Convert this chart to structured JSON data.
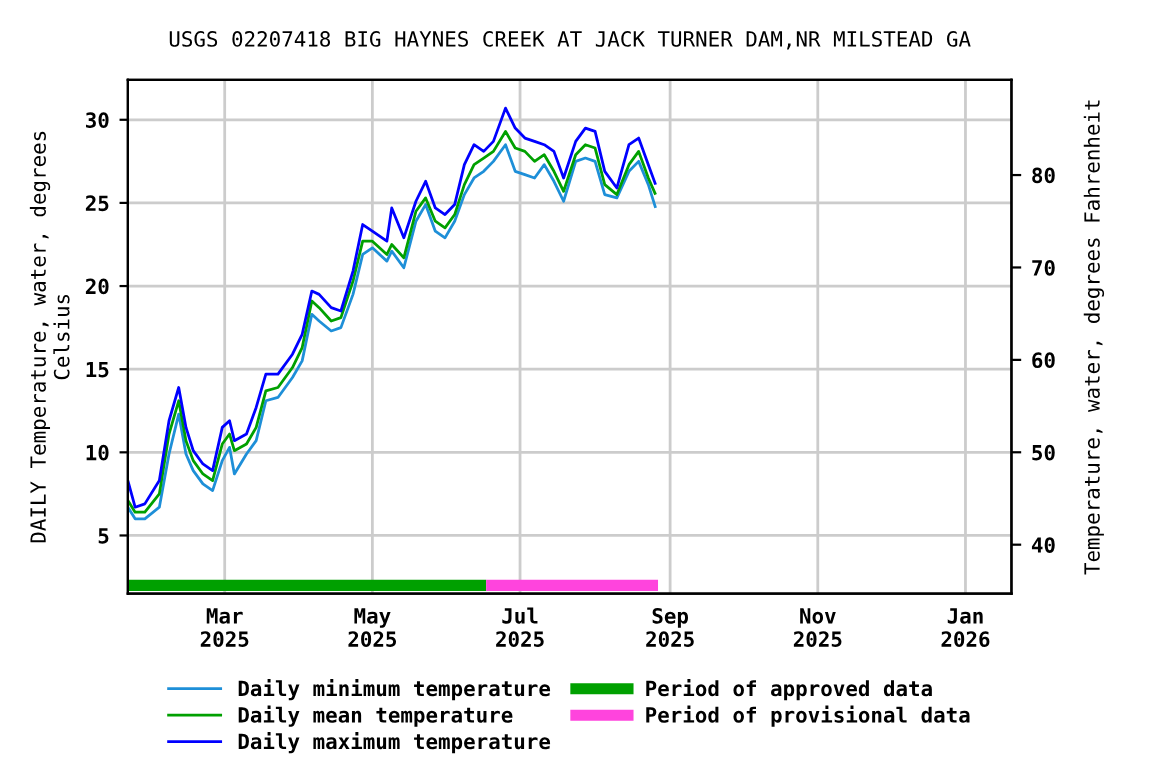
{
  "chart_data": {
    "type": "line",
    "title": "USGS 02207418 BIG HAYNES CREEK AT JACK TURNER DAM,NR MILSTEAD GA",
    "ylabel": "DAILY Temperature, water, degrees\nCelsius",
    "y2label": "Temperature, water, degrees Fahrenheit",
    "x": [
      "2025-01-20",
      "2025-01-23",
      "2025-01-27",
      "2025-02-02",
      "2025-02-06",
      "2025-02-10",
      "2025-02-13",
      "2025-02-16",
      "2025-02-20",
      "2025-02-24",
      "2025-02-28",
      "2025-03-03",
      "2025-03-05",
      "2025-03-10",
      "2025-03-14",
      "2025-03-18",
      "2025-03-23",
      "2025-03-29",
      "2025-04-02",
      "2025-04-06",
      "2025-04-09",
      "2025-04-14",
      "2025-04-18",
      "2025-04-23",
      "2025-04-27",
      "2025-05-01",
      "2025-05-07",
      "2025-05-09",
      "2025-05-14",
      "2025-05-19",
      "2025-05-23",
      "2025-05-27",
      "2025-05-31",
      "2025-06-04",
      "2025-06-08",
      "2025-06-12",
      "2025-06-16",
      "2025-06-20",
      "2025-06-25",
      "2025-06-29",
      "2025-07-03",
      "2025-07-07",
      "2025-07-11",
      "2025-07-15",
      "2025-07-19",
      "2025-07-24",
      "2025-07-28",
      "2025-08-01",
      "2025-08-05",
      "2025-08-10",
      "2025-08-15",
      "2025-08-19",
      "2025-08-23",
      "2025-08-26"
    ],
    "series": [
      {
        "name": "Daily minimum temperature",
        "color": "#1e8fd8",
        "values": [
          6.7,
          6.0,
          6.0,
          6.7,
          9.9,
          12.3,
          9.9,
          8.9,
          8.1,
          7.7,
          9.5,
          10.3,
          8.7,
          9.9,
          10.7,
          13.1,
          13.3,
          14.5,
          15.5,
          18.3,
          17.9,
          17.3,
          17.5,
          19.5,
          21.9,
          22.3,
          21.5,
          22.1,
          21.1,
          23.9,
          24.9,
          23.3,
          22.9,
          23.9,
          25.5,
          26.5,
          26.9,
          27.5,
          28.5,
          26.9,
          26.7,
          26.5,
          27.3,
          26.3,
          25.1,
          27.5,
          27.7,
          27.5,
          25.5,
          25.3,
          26.9,
          27.5,
          26.1,
          24.7
        ]
      },
      {
        "name": "Daily mean temperature",
        "color": "#00a000",
        "values": [
          7.1,
          6.4,
          6.4,
          7.5,
          11.1,
          13.1,
          10.7,
          9.5,
          8.7,
          8.3,
          10.5,
          11.1,
          10.1,
          10.5,
          11.5,
          13.7,
          13.9,
          15.1,
          16.3,
          19.1,
          18.7,
          17.9,
          18.1,
          20.3,
          22.7,
          22.7,
          21.9,
          22.5,
          21.7,
          24.5,
          25.3,
          23.9,
          23.5,
          24.3,
          26.1,
          27.3,
          27.7,
          28.1,
          29.3,
          28.3,
          28.1,
          27.5,
          27.9,
          26.9,
          25.7,
          27.9,
          28.5,
          28.3,
          26.1,
          25.5,
          27.3,
          28.1,
          26.5,
          25.5
        ]
      },
      {
        "name": "Daily maximum temperature",
        "color": "#0000ff",
        "values": [
          8.3,
          6.7,
          6.9,
          8.3,
          11.9,
          13.9,
          11.5,
          10.1,
          9.3,
          8.9,
          11.5,
          11.9,
          10.7,
          11.1,
          12.7,
          14.7,
          14.7,
          15.9,
          17.1,
          19.7,
          19.5,
          18.7,
          18.5,
          20.9,
          23.7,
          23.3,
          22.7,
          24.7,
          22.9,
          25.1,
          26.3,
          24.7,
          24.3,
          24.9,
          27.3,
          28.5,
          28.1,
          28.7,
          30.7,
          29.5,
          28.9,
          28.7,
          28.5,
          28.1,
          26.5,
          28.7,
          29.5,
          29.3,
          26.9,
          25.9,
          28.5,
          28.9,
          27.3,
          26.1
        ]
      },
      {
        "name": "Period of approved data",
        "color": "#00a000",
        "x": [
          "2025-01-20",
          "2025-06-17"
        ],
        "values": [
          2,
          2
        ]
      },
      {
        "name": "Period of provisional data",
        "color": "#ff44dd",
        "x": [
          "2025-06-17",
          "2025-08-27"
        ],
        "values": [
          2,
          2
        ]
      }
    ],
    "xlim": [
      "2025-01-20",
      "2026-01-20"
    ],
    "xticks": [
      {
        "value": "2025-03-01",
        "label": "Mar\n2025"
      },
      {
        "value": "2025-05-01",
        "label": "May\n2025"
      },
      {
        "value": "2025-07-01",
        "label": "Jul\n2025"
      },
      {
        "value": "2025-09-01",
        "label": "Sep\n2025"
      },
      {
        "value": "2025-11-01",
        "label": "Nov\n2025"
      },
      {
        "value": "2026-01-01",
        "label": "Jan\n2026"
      }
    ],
    "ylim": [
      1.5,
      32.4
    ],
    "yticks": [
      5,
      10,
      15,
      20,
      25,
      30
    ],
    "y2lim": [
      34.7,
      90.3
    ],
    "y2ticks": [
      40,
      50,
      60,
      70,
      80
    ],
    "grid": true,
    "legend": "bottom"
  }
}
